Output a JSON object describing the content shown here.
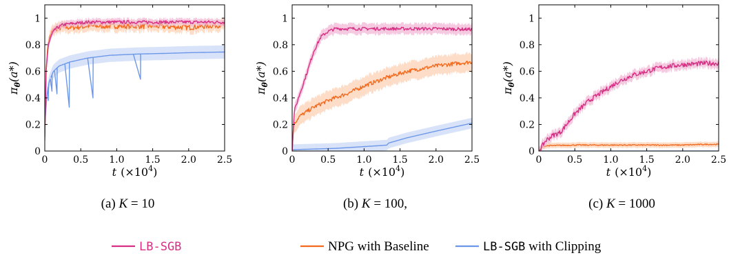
{
  "colors": {
    "lb_sgb": "#d62f84",
    "npg": "#f36a1e",
    "clip": "#6c97e8",
    "lb_sgb_band": "#f2b8d6",
    "npg_band": "#fcd2b4",
    "clip_band": "#cbd9f7"
  },
  "legend": [
    {
      "label": "LB-SGB",
      "color": "#d62f84"
    },
    {
      "label": "NPG with Baseline",
      "color": "#f36a1e"
    },
    {
      "label": "LB-SGB with Clipping",
      "color": "#6c97e8"
    }
  ],
  "legend_text": {
    "lb": "LB-SGB",
    "npg": "NPG with Baseline",
    "clip_mono": "LB-SGB",
    "clip_rest": " with Clipping"
  },
  "axis_text": {
    "ylabel": "π",
    "ylabel_sub": "θ",
    "ylabel_tail": "(a*)",
    "xlabel_t": "t",
    "xlabel_unit": "(×10",
    "xlabel_exp": "4",
    "xlabel_close": ")"
  },
  "chart_data": [
    {
      "type": "line",
      "caption": "(a) K = 10",
      "caption_prefix": "(a) ",
      "caption_k": "K",
      "caption_rest": " = 10",
      "xlabel": "t (×10^4)",
      "ylabel": "π_θ(a*)",
      "xlim": [
        0,
        2.5
      ],
      "ylim": [
        0,
        1.1
      ],
      "xticks": [
        "0",
        "0.5",
        "1.0",
        "1.5",
        "2.0",
        "2.5"
      ],
      "yticks": [
        "0",
        "0.2",
        "0.4",
        "0.6",
        "0.8",
        "1"
      ],
      "grid": false,
      "series": [
        {
          "name": "LB-SGB",
          "x": [
            0,
            0.02,
            0.05,
            0.1,
            0.15,
            0.25,
            0.4,
            0.6,
            0.8,
            1.0,
            1.5,
            2.0,
            2.5
          ],
          "y": [
            0.1,
            0.62,
            0.8,
            0.88,
            0.92,
            0.95,
            0.96,
            0.97,
            0.97,
            0.97,
            0.97,
            0.97,
            0.97
          ],
          "band": 0.025,
          "noise": 0.012
        },
        {
          "name": "NPG with Baseline",
          "x": [
            0,
            0.02,
            0.05,
            0.1,
            0.15,
            0.25,
            0.4,
            0.6,
            0.8,
            1.0,
            1.5,
            2.0,
            2.5
          ],
          "y": [
            0.1,
            0.65,
            0.82,
            0.9,
            0.92,
            0.93,
            0.93,
            0.94,
            0.94,
            0.94,
            0.94,
            0.93,
            0.95
          ],
          "band": 0.04,
          "noise": 0.02
        },
        {
          "name": "LB-SGB with Clipping",
          "x": [
            0,
            0.03,
            0.06,
            0.12,
            0.2,
            0.35,
            0.6,
            0.9,
            1.3,
            1.7,
            2.0,
            2.5
          ],
          "y": [
            0.2,
            0.42,
            0.52,
            0.6,
            0.64,
            0.67,
            0.7,
            0.72,
            0.73,
            0.735,
            0.74,
            0.745
          ],
          "band": 0.05,
          "noise": 0.0,
          "dips": [
            [
              0.05,
              0.38
            ],
            [
              0.1,
              0.45
            ],
            [
              0.17,
              0.43
            ],
            [
              0.34,
              0.33
            ],
            [
              0.67,
              0.4
            ],
            [
              1.33,
              0.54
            ]
          ]
        }
      ]
    },
    {
      "type": "line",
      "caption": "(b) K = 100,",
      "caption_prefix": "(b) ",
      "caption_k": "K",
      "caption_rest": " = 100,",
      "xlabel": "t (×10^4)",
      "ylabel": "π_θ(a*)",
      "xlim": [
        0,
        2.5
      ],
      "ylim": [
        0,
        1.1
      ],
      "xticks": [
        "0",
        "0.5",
        "1.0",
        "1.5",
        "2.0",
        "2.5"
      ],
      "yticks": [
        "0",
        "0.2",
        "0.4",
        "0.6",
        "0.8",
        "1"
      ],
      "grid": false,
      "series": [
        {
          "name": "LB-SGB",
          "x": [
            0,
            0.03,
            0.1,
            0.2,
            0.3,
            0.4,
            0.5,
            0.6,
            0.8,
            1.0,
            1.5,
            2.0,
            2.5
          ],
          "y": [
            0.0,
            0.3,
            0.42,
            0.58,
            0.75,
            0.86,
            0.9,
            0.92,
            0.92,
            0.92,
            0.92,
            0.92,
            0.915
          ],
          "band": 0.04,
          "noise": 0.012
        },
        {
          "name": "NPG with Baseline",
          "x": [
            0,
            0.02,
            0.1,
            0.3,
            0.5,
            0.8,
            1.0,
            1.3,
            1.6,
            2.0,
            2.3,
            2.5
          ],
          "y": [
            0.0,
            0.2,
            0.26,
            0.33,
            0.38,
            0.44,
            0.49,
            0.55,
            0.6,
            0.64,
            0.66,
            0.67
          ],
          "band": 0.07,
          "noise": 0.015
        },
        {
          "name": "LB-SGB with Clipping",
          "x": [
            0,
            0.3,
            0.6,
            0.9,
            1.2,
            1.32,
            1.34,
            1.6,
            2.0,
            2.5
          ],
          "y": [
            0.01,
            0.015,
            0.02,
            0.03,
            0.04,
            0.045,
            0.06,
            0.1,
            0.15,
            0.21
          ],
          "band": 0.04,
          "noise": 0.0
        }
      ]
    },
    {
      "type": "line",
      "caption": "(c) K = 1000",
      "caption_prefix": "(c) ",
      "caption_k": "K",
      "caption_rest": " = 1000",
      "xlabel": "t (×10^4)",
      "ylabel": "π_θ(a*)",
      "xlim": [
        0,
        2.5
      ],
      "ylim": [
        0,
        1.1
      ],
      "xticks": [
        "0",
        "0.5",
        "1.0",
        "1.5",
        "2.0",
        "2.5"
      ],
      "yticks": [
        "0",
        "0.2",
        "0.4",
        "0.6",
        "0.8",
        "1"
      ],
      "grid": false,
      "series": [
        {
          "name": "LB-SGB",
          "x": [
            0,
            0.1,
            0.2,
            0.3,
            0.5,
            0.7,
            0.9,
            1.1,
            1.3,
            1.5,
            1.7,
            2.0,
            2.3,
            2.5
          ],
          "y": [
            0.0,
            0.08,
            0.12,
            0.14,
            0.28,
            0.38,
            0.45,
            0.52,
            0.57,
            0.6,
            0.63,
            0.65,
            0.66,
            0.66
          ],
          "band": 0.035,
          "noise": 0.018
        },
        {
          "name": "NPG with Baseline",
          "x": [
            0,
            0.05,
            0.1,
            0.5,
            1.0,
            1.5,
            2.0,
            2.3,
            2.5
          ],
          "y": [
            0.0,
            0.03,
            0.04,
            0.045,
            0.045,
            0.045,
            0.045,
            0.05,
            0.05
          ],
          "band": 0.02,
          "noise": 0.004
        },
        {
          "name": "LB-SGB with Clipping",
          "x": [
            0,
            2.5
          ],
          "y": [
            0.0,
            0.0
          ],
          "band": 0.0,
          "noise": 0.0
        }
      ]
    }
  ]
}
